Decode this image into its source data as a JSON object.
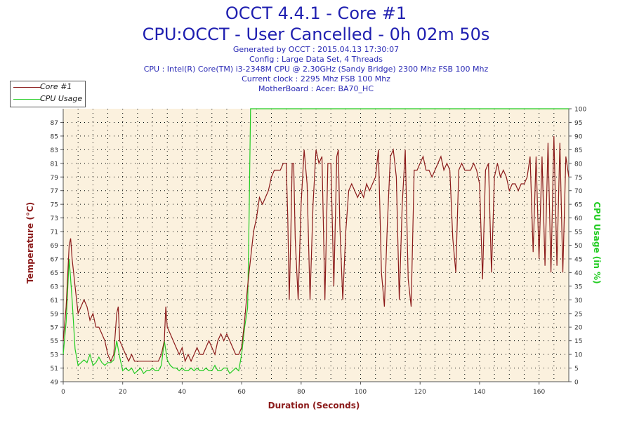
{
  "chart_data": {
    "type": "line",
    "title": "OCCT 4.4.1 - Core #1",
    "subtitle": "CPU:OCCT - User Cancelled - 0h 02m 50s",
    "info_lines": [
      "Generated by OCCT : 2015.04.13 17:30:07",
      "Config : Large Data Set, 4 Threads",
      "CPU : Intel(R) Core(TM) i3-2348M CPU @ 2.30GHz (Sandy Bridge) 2300 Mhz FSB 100 Mhz",
      "Current clock : 2295 Mhz FSB 100 Mhz",
      "MotherBoard : Acer: BA70_HC"
    ],
    "xlabel": "Duration (Seconds)",
    "ylabel": "Temperature (°C)",
    "y2label": "CPU Usage (in %)",
    "xlim": [
      0,
      170
    ],
    "ylim": [
      49,
      89
    ],
    "y2lim": [
      0,
      100
    ],
    "x_ticks": [
      "0",
      "20",
      "40",
      "60",
      "80",
      "100",
      "120",
      "140",
      "160"
    ],
    "y_ticks": [
      "49",
      "51",
      "53",
      "55",
      "57",
      "59",
      "61",
      "63",
      "65",
      "67",
      "69",
      "71",
      "73",
      "75",
      "77",
      "79",
      "81",
      "83",
      "85",
      "87"
    ],
    "y2_ticks": [
      "0",
      "5",
      "10",
      "15",
      "20",
      "25",
      "30",
      "35",
      "40",
      "45",
      "50",
      "55",
      "60",
      "65",
      "70",
      "75",
      "80",
      "85",
      "90",
      "95",
      "100"
    ],
    "grid": true,
    "colors": {
      "core": "#8b1a1a",
      "usage": "#22cc22",
      "plot_bg": "#fbf1de",
      "title": "#1f1fb0"
    },
    "series": [
      {
        "name": "Core #1",
        "axis": "left",
        "points": [
          [
            0,
            55
          ],
          [
            1,
            60
          ],
          [
            2,
            69
          ],
          [
            2.5,
            70
          ],
          [
            3,
            67
          ],
          [
            4,
            63
          ],
          [
            5,
            59
          ],
          [
            6,
            60
          ],
          [
            7,
            61
          ],
          [
            8,
            60
          ],
          [
            9,
            58
          ],
          [
            10,
            59
          ],
          [
            11,
            57
          ],
          [
            12,
            57
          ],
          [
            13,
            56
          ],
          [
            14,
            55
          ],
          [
            15,
            53
          ],
          [
            16,
            52
          ],
          [
            17,
            53
          ],
          [
            18,
            59
          ],
          [
            18.5,
            60
          ],
          [
            19,
            55
          ],
          [
            20,
            54
          ],
          [
            21,
            53
          ],
          [
            22,
            52
          ],
          [
            23,
            53
          ],
          [
            24,
            52
          ],
          [
            25,
            52
          ],
          [
            26,
            52
          ],
          [
            27,
            52
          ],
          [
            28,
            52
          ],
          [
            29,
            52
          ],
          [
            30,
            52
          ],
          [
            31,
            52
          ],
          [
            32,
            52
          ],
          [
            33,
            53
          ],
          [
            34,
            55
          ],
          [
            34.5,
            60
          ],
          [
            35,
            57
          ],
          [
            36,
            56
          ],
          [
            37,
            55
          ],
          [
            38,
            54
          ],
          [
            39,
            53
          ],
          [
            40,
            54
          ],
          [
            41,
            52
          ],
          [
            42,
            53
          ],
          [
            43,
            52
          ],
          [
            44,
            53
          ],
          [
            45,
            54
          ],
          [
            46,
            53
          ],
          [
            47,
            53
          ],
          [
            48,
            54
          ],
          [
            49,
            55
          ],
          [
            50,
            54
          ],
          [
            51,
            53
          ],
          [
            52,
            55
          ],
          [
            53,
            56
          ],
          [
            54,
            55
          ],
          [
            55,
            56
          ],
          [
            56,
            55
          ],
          [
            57,
            54
          ],
          [
            58,
            53
          ],
          [
            59,
            53
          ],
          [
            60,
            54
          ],
          [
            61,
            58
          ],
          [
            62,
            63
          ],
          [
            63,
            67
          ],
          [
            64,
            71
          ],
          [
            65,
            73
          ],
          [
            66,
            76
          ],
          [
            67,
            75
          ],
          [
            68,
            76
          ],
          [
            69,
            77
          ],
          [
            70,
            79
          ],
          [
            71,
            80
          ],
          [
            72,
            80
          ],
          [
            73,
            80
          ],
          [
            74,
            81
          ],
          [
            75,
            81
          ],
          [
            75.5,
            73
          ],
          [
            76,
            61
          ],
          [
            76.5,
            70
          ],
          [
            77,
            81
          ],
          [
            77.5,
            81
          ],
          [
            78,
            70
          ],
          [
            79,
            61
          ],
          [
            80,
            75
          ],
          [
            81,
            83
          ],
          [
            82,
            78
          ],
          [
            83,
            61
          ],
          [
            84,
            75
          ],
          [
            85,
            83
          ],
          [
            86,
            81
          ],
          [
            87,
            82
          ],
          [
            88,
            61
          ],
          [
            89,
            81
          ],
          [
            90,
            81
          ],
          [
            91,
            63
          ],
          [
            92,
            82
          ],
          [
            92.5,
            83
          ],
          [
            93,
            72
          ],
          [
            94,
            61
          ],
          [
            95,
            71
          ],
          [
            96,
            77
          ],
          [
            97,
            78
          ],
          [
            98,
            77
          ],
          [
            99,
            76
          ],
          [
            100,
            77
          ],
          [
            101,
            76
          ],
          [
            102,
            78
          ],
          [
            103,
            77
          ],
          [
            104,
            78
          ],
          [
            105,
            79
          ],
          [
            106,
            83
          ],
          [
            107,
            65
          ],
          [
            108,
            60
          ],
          [
            109,
            72
          ],
          [
            110,
            82
          ],
          [
            111,
            83
          ],
          [
            112,
            79
          ],
          [
            113,
            61
          ],
          [
            114,
            75
          ],
          [
            115,
            83
          ],
          [
            116,
            64
          ],
          [
            117,
            60
          ],
          [
            118,
            80
          ],
          [
            119,
            80
          ],
          [
            120,
            81
          ],
          [
            121,
            82
          ],
          [
            122,
            80
          ],
          [
            123,
            80
          ],
          [
            124,
            79
          ],
          [
            125,
            80
          ],
          [
            126,
            81
          ],
          [
            127,
            82
          ],
          [
            128,
            80
          ],
          [
            129,
            81
          ],
          [
            130,
            80
          ],
          [
            131,
            70
          ],
          [
            132,
            65
          ],
          [
            133,
            80
          ],
          [
            134,
            81
          ],
          [
            135,
            80
          ],
          [
            136,
            80
          ],
          [
            137,
            80
          ],
          [
            138,
            81
          ],
          [
            139,
            80
          ],
          [
            140,
            78
          ],
          [
            141,
            64
          ],
          [
            142,
            80
          ],
          [
            143,
            81
          ],
          [
            144,
            65
          ],
          [
            145,
            79
          ],
          [
            146,
            81
          ],
          [
            147,
            79
          ],
          [
            148,
            80
          ],
          [
            149,
            79
          ],
          [
            150,
            77
          ],
          [
            151,
            78
          ],
          [
            152,
            78
          ],
          [
            153,
            77
          ],
          [
            154,
            78
          ],
          [
            155,
            78
          ],
          [
            156,
            79
          ],
          [
            157,
            82
          ],
          [
            158,
            68
          ],
          [
            159,
            82
          ],
          [
            160,
            67
          ],
          [
            161,
            82
          ],
          [
            162,
            66
          ],
          [
            163,
            84
          ],
          [
            164,
            65
          ],
          [
            165,
            85
          ],
          [
            166,
            66
          ],
          [
            167,
            84
          ],
          [
            168,
            65
          ],
          [
            169,
            82
          ],
          [
            170,
            79
          ]
        ]
      },
      {
        "name": "CPU Usage",
        "axis": "right",
        "points": [
          [
            0,
            10
          ],
          [
            1,
            22
          ],
          [
            2,
            45
          ],
          [
            3,
            30
          ],
          [
            4,
            12
          ],
          [
            5,
            6
          ],
          [
            6,
            7
          ],
          [
            7,
            8
          ],
          [
            8,
            7
          ],
          [
            9,
            10
          ],
          [
            10,
            6
          ],
          [
            11,
            7
          ],
          [
            12,
            9
          ],
          [
            13,
            7
          ],
          [
            14,
            6
          ],
          [
            15,
            7
          ],
          [
            16,
            7
          ],
          [
            17,
            8
          ],
          [
            18,
            15
          ],
          [
            19,
            9
          ],
          [
            20,
            4
          ],
          [
            21,
            5
          ],
          [
            22,
            4
          ],
          [
            23,
            5
          ],
          [
            24,
            3
          ],
          [
            25,
            4
          ],
          [
            26,
            5
          ],
          [
            27,
            3
          ],
          [
            28,
            4
          ],
          [
            29,
            4
          ],
          [
            30,
            5
          ],
          [
            31,
            4
          ],
          [
            32,
            4
          ],
          [
            33,
            6
          ],
          [
            34,
            15
          ],
          [
            35,
            8
          ],
          [
            36,
            6
          ],
          [
            37,
            5
          ],
          [
            38,
            5
          ],
          [
            39,
            4
          ],
          [
            40,
            5
          ],
          [
            41,
            4
          ],
          [
            42,
            4
          ],
          [
            43,
            5
          ],
          [
            44,
            4
          ],
          [
            45,
            5
          ],
          [
            46,
            4
          ],
          [
            47,
            4
          ],
          [
            48,
            5
          ],
          [
            49,
            4
          ],
          [
            50,
            4
          ],
          [
            51,
            6
          ],
          [
            52,
            4
          ],
          [
            53,
            4
          ],
          [
            54,
            5
          ],
          [
            55,
            5
          ],
          [
            56,
            3
          ],
          [
            57,
            4
          ],
          [
            58,
            5
          ],
          [
            59,
            4
          ],
          [
            60,
            10
          ],
          [
            61,
            20
          ],
          [
            62,
            27
          ],
          [
            62.5,
            60
          ],
          [
            63,
            100
          ],
          [
            80,
            100
          ],
          [
            100,
            100
          ],
          [
            120,
            100
          ],
          [
            140,
            100
          ],
          [
            160,
            100
          ],
          [
            170,
            100
          ]
        ]
      }
    ]
  }
}
